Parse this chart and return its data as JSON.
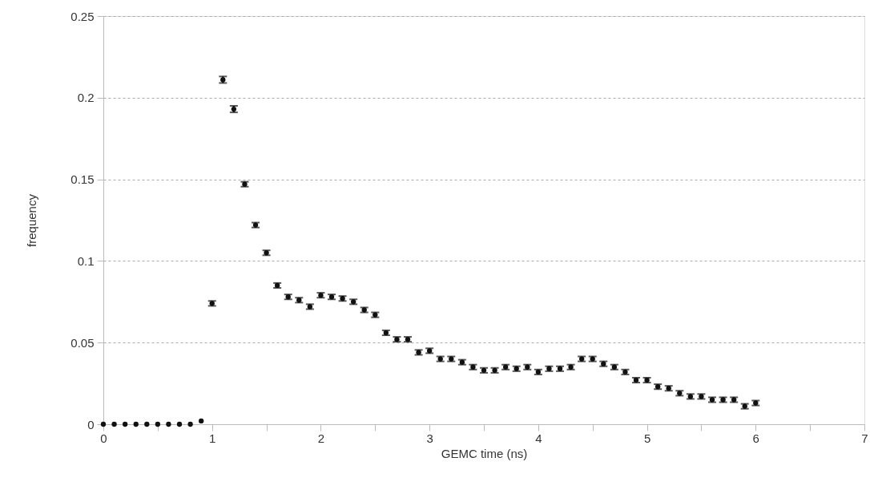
{
  "chart_data": {
    "type": "scatter",
    "xlabel": "GEMC time (ns)",
    "ylabel": "frequency",
    "x": [
      0,
      0.1,
      0.2,
      0.3,
      0.4,
      0.5,
      0.6,
      0.7,
      0.8,
      0.9,
      1.0,
      1.1,
      1.2,
      1.3,
      1.4,
      1.5,
      1.6,
      1.7,
      1.8,
      1.9,
      2.0,
      2.1,
      2.2,
      2.3,
      2.4,
      2.5,
      2.6,
      2.7,
      2.8,
      2.9,
      3.0,
      3.1,
      3.2,
      3.3,
      3.4,
      3.5,
      3.6,
      3.7,
      3.8,
      3.9,
      4.0,
      4.1,
      4.2,
      4.3,
      4.4,
      4.5,
      4.6,
      4.7,
      4.8,
      4.9,
      5.0,
      5.1,
      5.2,
      5.3,
      5.4,
      5.5,
      5.6,
      5.7,
      5.8,
      5.9,
      6.0
    ],
    "series": [
      {
        "color": "#111111",
        "values": [
          0,
          0,
          0,
          0,
          0,
          0,
          0,
          0,
          0,
          0.002,
          0.074,
          0.211,
          0.193,
          0.147,
          0.122,
          0.105,
          0.085,
          0.078,
          0.076,
          0.072,
          0.079,
          0.078,
          0.077,
          0.075,
          0.07,
          0.067,
          0.056,
          0.052,
          0.052,
          0.044,
          0.045,
          0.04,
          0.04,
          0.038,
          0.035,
          0.033,
          0.033,
          0.035,
          0.034,
          0.035,
          0.032,
          0.034,
          0.034,
          0.035,
          0.04,
          0.04,
          0.037,
          0.035,
          0.032,
          0.027,
          0.027,
          0.023,
          0.022,
          0.019,
          0.017,
          0.017,
          0.015,
          0.015,
          0.015,
          0.011,
          0.013
        ],
        "errors": [
          null,
          null,
          null,
          null,
          null,
          null,
          null,
          null,
          null,
          null,
          0.0015,
          0.002,
          0.002,
          0.0015,
          0.0015,
          0.0015,
          0.0015,
          0.0015,
          0.0015,
          0.0015,
          0.0015,
          0.0015,
          0.0015,
          0.0015,
          0.0015,
          0.0015,
          0.0015,
          0.0015,
          0.0015,
          0.0015,
          0.0015,
          0.0015,
          0.0015,
          0.0015,
          0.0015,
          0.0015,
          0.0015,
          0.0015,
          0.0015,
          0.0015,
          0.0015,
          0.0015,
          0.0015,
          0.0015,
          0.0015,
          0.0015,
          0.0015,
          0.0015,
          0.0015,
          0.0015,
          0.0015,
          0.0015,
          0.0015,
          0.0015,
          0.0015,
          0.0015,
          0.0015,
          0.0015,
          0.0015,
          0.0015,
          0.0015
        ]
      }
    ],
    "xlim": [
      0,
      7
    ],
    "xticks": [
      0,
      {
        "value": 0.5,
        "label": null
      },
      1,
      {
        "value": 1.5,
        "label": null
      },
      2,
      {
        "value": 2.5,
        "label": null
      },
      3,
      {
        "value": 3.5,
        "label": null
      },
      4,
      {
        "value": 4.5,
        "label": null
      },
      5,
      {
        "value": 5.5,
        "label": null
      },
      6,
      {
        "value": 6.5,
        "label": null
      },
      7
    ],
    "ylim": [
      0,
      0.25
    ],
    "yticks": [
      0,
      0.05,
      0.1,
      0.15,
      0.2,
      0.25
    ],
    "grid": "y",
    "marker": "circle"
  }
}
